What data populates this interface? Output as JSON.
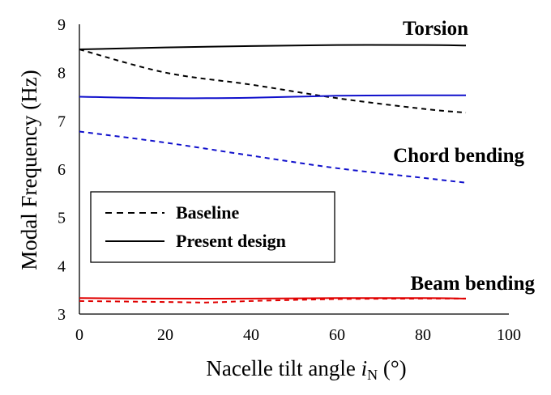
{
  "chart_data": {
    "type": "line",
    "xlabel_main": "Nacelle tilt angle ",
    "xlabel_symbol": "i",
    "xlabel_sub": "N",
    "xlabel_unit": " (°)",
    "ylabel": "Modal Frequency (Hz)",
    "xlim": [
      0,
      100
    ],
    "ylim": [
      3,
      9
    ],
    "x_ticks": [
      "0",
      "20",
      "40",
      "60",
      "80",
      "100"
    ],
    "y_ticks": [
      "3",
      "4",
      "5",
      "6",
      "7",
      "8",
      "9"
    ],
    "grid": false,
    "series": [
      {
        "mode": "Torsion",
        "design": "Baseline",
        "color": "#000000",
        "dashed": true,
        "x": [
          0,
          20,
          40,
          60,
          80,
          90
        ],
        "y": [
          8.48,
          8.0,
          7.75,
          7.47,
          7.25,
          7.17
        ]
      },
      {
        "mode": "Torsion",
        "design": "Present design",
        "color": "#000000",
        "dashed": false,
        "x": [
          0,
          20,
          40,
          60,
          80,
          90
        ],
        "y": [
          8.48,
          8.52,
          8.55,
          8.57,
          8.57,
          8.56
        ]
      },
      {
        "mode": "Chord bending",
        "design": "Baseline",
        "color": "#1010cc",
        "dashed": true,
        "x": [
          0,
          20,
          40,
          60,
          80,
          90
        ],
        "y": [
          6.78,
          6.55,
          6.28,
          6.02,
          5.82,
          5.72
        ]
      },
      {
        "mode": "Chord bending",
        "design": "Present design",
        "color": "#1010cc",
        "dashed": false,
        "x": [
          0,
          20,
          40,
          60,
          80,
          90
        ],
        "y": [
          7.5,
          7.47,
          7.48,
          7.52,
          7.53,
          7.53
        ]
      },
      {
        "mode": "Beam bending",
        "design": "Baseline",
        "color": "#e00000",
        "dashed": true,
        "x": [
          0,
          20,
          30,
          40,
          60,
          80,
          90
        ],
        "y": [
          3.27,
          3.25,
          3.24,
          3.27,
          3.31,
          3.32,
          3.32
        ]
      },
      {
        "mode": "Beam bending",
        "design": "Present design",
        "color": "#e00000",
        "dashed": false,
        "x": [
          0,
          20,
          40,
          60,
          80,
          90
        ],
        "y": [
          3.33,
          3.32,
          3.32,
          3.33,
          3.33,
          3.32
        ]
      }
    ],
    "annotations": [
      {
        "text": "Torsion",
        "color": "#000000"
      },
      {
        "text": "Chord bending",
        "color": "#1010cc"
      },
      {
        "text": "Beam bending",
        "color": "#e00000"
      }
    ],
    "legend": {
      "placement": "lower-left",
      "items": [
        {
          "label": "Baseline",
          "dashed": true
        },
        {
          "label": "Present design",
          "dashed": false
        }
      ]
    }
  }
}
